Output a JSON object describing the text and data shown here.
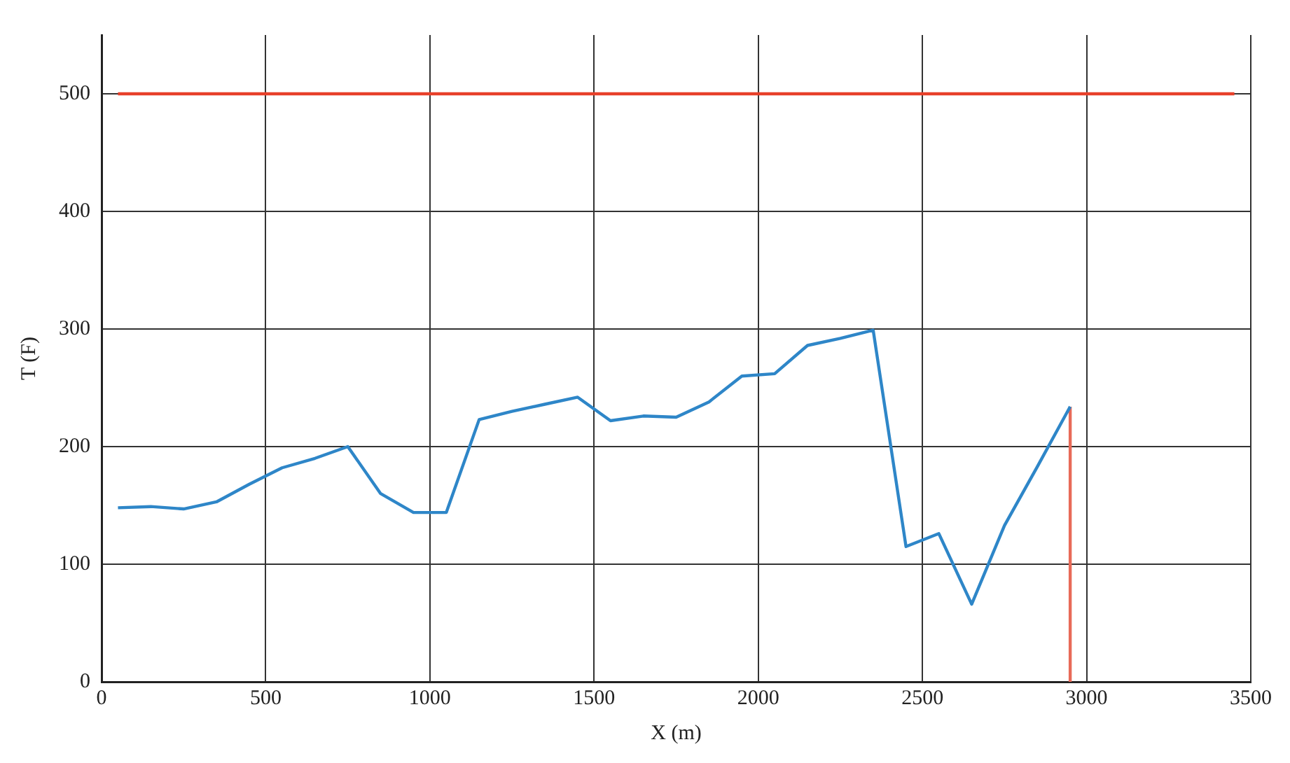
{
  "chart_data": {
    "type": "line",
    "xlabel": "X (m)",
    "ylabel": "T (F)",
    "xlim": [
      0,
      3500
    ],
    "xticks": [
      0,
      500,
      1000,
      1500,
      2000,
      2500,
      3000,
      3500
    ],
    "ylim": [
      0,
      550
    ],
    "yticks": [
      0,
      100,
      200,
      300,
      400,
      500
    ],
    "grid": true,
    "line_style": "solid",
    "marker": "none",
    "legend": false,
    "series": [
      {
        "color": "#2e86c8",
        "x": [
          50,
          150,
          250,
          350,
          450,
          550,
          650,
          750,
          850,
          950,
          1050,
          1150,
          1250,
          1350,
          1450,
          1550,
          1650,
          1750,
          1850,
          1950,
          2050,
          2150,
          2250,
          2350,
          2450,
          2550,
          2650,
          2750,
          2850,
          2950
        ],
        "values": [
          148,
          149,
          147,
          153,
          168,
          182,
          190,
          200,
          160,
          144,
          144,
          223,
          230,
          236,
          242,
          222,
          226,
          225,
          238,
          260,
          262,
          286,
          292,
          299,
          115,
          126,
          66,
          133,
          183,
          234
        ]
      },
      {
        "color": "#e8402a",
        "x": [
          50,
          3450
        ],
        "values": [
          500,
          500
        ]
      },
      {
        "color": "#e86a58",
        "x": [
          2950,
          2950
        ],
        "values": [
          0,
          234
        ]
      }
    ]
  }
}
